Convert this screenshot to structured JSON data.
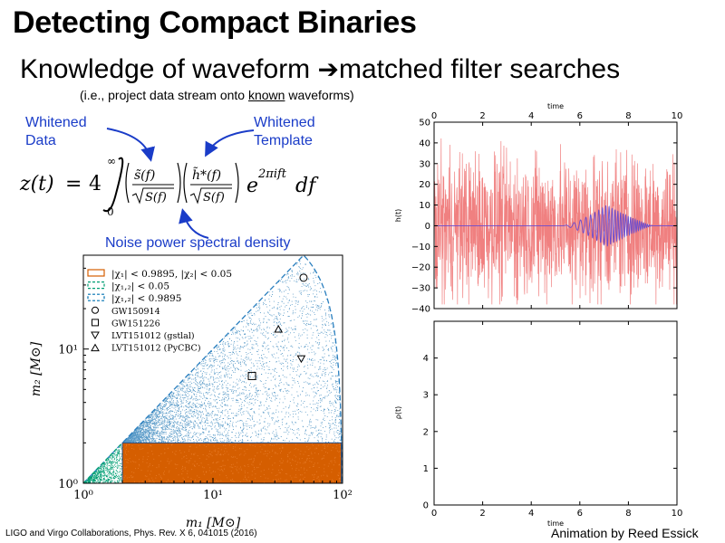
{
  "slide": {
    "title": "Detecting Compact Binaries",
    "subtitle_before": "Knowledge of waveform ",
    "subtitle_arrow": "➔",
    "subtitle_after": "matched filter searches",
    "subnote_before": "(i.e., project data stream onto ",
    "subnote_underlined": "known",
    "subnote_after": " waveforms)",
    "citation": "LIGO and Virgo Collaborations, Phys. Rev. X 6, 041015 (2016)",
    "credit": "Animation by Reed Essick"
  },
  "equation": {
    "labels": {
      "whitened_data": [
        "Whitened",
        "Data"
      ],
      "whitened_template": [
        "Whitened",
        "Template"
      ],
      "noise_psd": "Noise power spectral density"
    },
    "lhs": "z(t)",
    "equals": "=",
    "coeff": "4",
    "upper_limit": "∞",
    "lower_limit": "0",
    "data_num": "s̃(f)",
    "template_num": "h̃*(f)",
    "sqrt_den": "S(f)",
    "exponent": "2πift",
    "exp_base": "e",
    "differential": "df"
  },
  "mass_plot": {
    "xlabel": "m₁ [M⊙]",
    "ylabel": "m₂ [M⊙]",
    "x_ticks": [
      "10⁰",
      "10¹",
      "10²"
    ],
    "y_ticks": [
      "10⁰",
      "10¹"
    ],
    "xlim": [
      1,
      100
    ],
    "ylim": [
      1,
      50
    ],
    "scale": "log-log",
    "legend_position": "top-left",
    "legend": [
      {
        "label": "|χ₁| < 0.9895, |χ₂| < 0.05",
        "style": "orange-dashed-box",
        "color": "#d55e00"
      },
      {
        "label": "|χ₁,₂| < 0.05",
        "style": "green-dashed-box",
        "color": "#009e73"
      },
      {
        "label": "|χ₁,₂| < 0.9895",
        "style": "blue-dashed-box",
        "color": "#0072b2"
      },
      {
        "label": "GW150914",
        "marker": "circle"
      },
      {
        "label": "GW151226",
        "marker": "square"
      },
      {
        "label": "LVT151012 (gstlal)",
        "marker": "triangle-down"
      },
      {
        "label": "LVT151012 (PyCBC)",
        "marker": "triangle-up"
      }
    ],
    "events": [
      {
        "name": "GW150914",
        "m1": 50,
        "m2": 34,
        "marker": "circle"
      },
      {
        "name": "GW151226",
        "m1": 20,
        "m2": 6.3,
        "marker": "square"
      },
      {
        "name": "LVT151012 (gstlal)",
        "m1": 48,
        "m2": 8.5,
        "marker": "triangle-down"
      },
      {
        "name": "LVT151012 (PyCBC)",
        "m1": 32,
        "m2": 14,
        "marker": "triangle-up"
      }
    ],
    "colors": {
      "orange": "#d55e00",
      "blue": "#1f77b4",
      "green": "#009e73"
    }
  },
  "chart_data": [
    {
      "type": "line",
      "title": "",
      "xlabel_top": "time",
      "ylabel": "h(t)",
      "xlim": [
        0,
        10
      ],
      "ylim": [
        -40,
        50
      ],
      "x_ticks": [
        "0",
        "2",
        "4",
        "6",
        "8",
        "10"
      ],
      "y_ticks": [
        "50",
        "40",
        "30",
        "20",
        "10",
        "0",
        "−10",
        "−20",
        "−30",
        "−40"
      ],
      "series": [
        {
          "color": "#f08080",
          "kind": "noise",
          "amplitude": 20
        },
        {
          "color": "#6a4ccf",
          "kind": "chirp",
          "t_start": 5.3,
          "t_peak": 7.1,
          "t_end": 9.0,
          "amplitude": 10
        }
      ]
    },
    {
      "type": "line",
      "title": "",
      "xlabel": "time",
      "ylabel": "ρ(t)",
      "xlim": [
        0,
        10
      ],
      "ylim": [
        0,
        5
      ],
      "x_ticks": [
        "0",
        "2",
        "4",
        "6",
        "8",
        "10"
      ],
      "y_ticks": [
        "0",
        "1",
        "2",
        "3",
        "4"
      ],
      "series": []
    }
  ]
}
